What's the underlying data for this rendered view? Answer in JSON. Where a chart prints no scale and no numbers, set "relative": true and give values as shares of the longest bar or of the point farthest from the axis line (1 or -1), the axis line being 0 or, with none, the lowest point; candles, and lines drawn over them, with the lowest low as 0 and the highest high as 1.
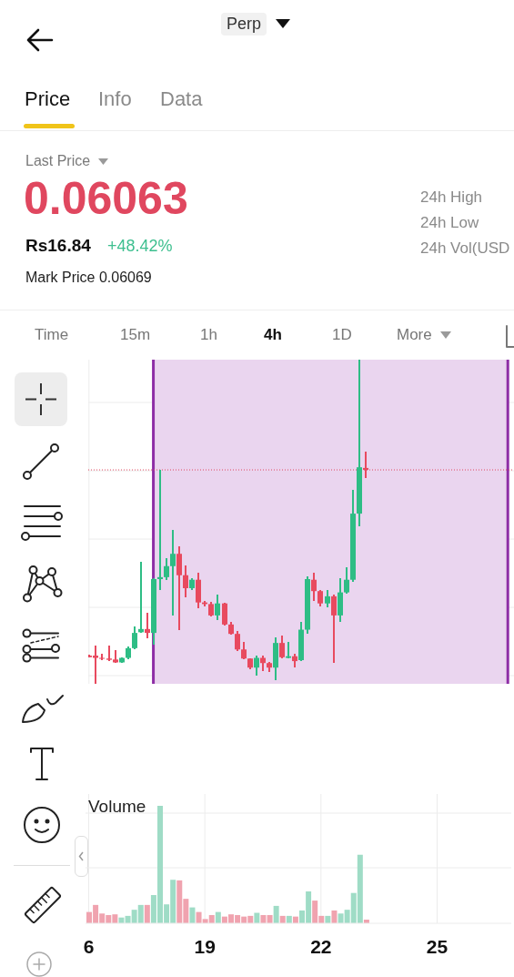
{
  "chart_data": [
    {
      "type": "other",
      "annotations": [
        "Perp",
        "Price",
        "Info",
        "Data",
        "Last Price",
        "0.06063",
        "Rs16.84",
        "+48.42%",
        "Mark Price 0.06069",
        "24h High",
        "24h Low",
        "24h Vol(USD",
        "Time",
        "15m",
        "1h",
        "4h",
        "1D",
        "More"
      ]
    },
    {
      "type": "candlestick",
      "relative": true,
      "x": [
        16,
        16.167,
        16.333,
        16.5,
        16.667,
        16.833,
        17,
        17.167,
        17.333,
        17.5,
        17.667,
        17.833,
        18,
        18.167,
        18.333,
        18.5,
        18.667,
        18.833,
        19,
        19.167,
        19.333,
        19.5,
        19.667,
        19.833,
        20,
        20.167,
        20.333,
        20.5,
        20.667,
        20.833,
        21,
        21.167,
        21.333,
        21.5,
        21.667,
        21.833,
        22,
        22.167,
        22.333,
        22.5,
        22.667,
        22.833,
        23,
        23.167
      ],
      "ohlc": [
        [
          0.087,
          0.089,
          0.081,
          0.082
        ],
        [
          0.087,
          0.117,
          0,
          0.08
        ],
        [
          0.08,
          0.092,
          0.073,
          0.078
        ],
        [
          0.078,
          0.117,
          0.07,
          0.074
        ],
        [
          0.075,
          0.104,
          0.064,
          0.066
        ],
        [
          0.066,
          0.082,
          0.064,
          0.08
        ],
        [
          0.08,
          0.115,
          0.076,
          0.11
        ],
        [
          0.11,
          0.178,
          0.106,
          0.157
        ],
        [
          0.159,
          0.377,
          0.157,
          0.169
        ],
        [
          0.169,
          0.22,
          0.141,
          0.157
        ],
        [
          0.157,
          0.326,
          0.12,
          0.323
        ],
        [
          0.323,
          0.66,
          0.288,
          0.329
        ],
        [
          0.329,
          0.389,
          0.319,
          0.363
        ],
        [
          0.363,
          0.474,
          0.211,
          0.401
        ],
        [
          0.401,
          0.424,
          0.167,
          0.335
        ],
        [
          0.335,
          0.365,
          0.268,
          0.295
        ],
        [
          0.295,
          0.326,
          0.288,
          0.321
        ],
        [
          0.321,
          0.342,
          0.232,
          0.251
        ],
        [
          0.251,
          0.257,
          0.239,
          0.246
        ],
        [
          0.246,
          0.254,
          0.207,
          0.211
        ],
        [
          0.211,
          0.274,
          0.198,
          0.248
        ],
        [
          0.248,
          0.251,
          0.181,
          0.183
        ],
        [
          0.183,
          0.192,
          0.151,
          0.154
        ],
        [
          0.154,
          0.162,
          0.101,
          0.106
        ],
        [
          0.106,
          0.129,
          0.076,
          0.078
        ],
        [
          0.078,
          0.08,
          0.045,
          0.05
        ],
        [
          0.05,
          0.087,
          0.026,
          0.08
        ],
        [
          0.08,
          0.087,
          0.04,
          0.064
        ],
        [
          0.064,
          0.068,
          0.036,
          0.05
        ],
        [
          0.05,
          0.143,
          0.01,
          0.126
        ],
        [
          0.126,
          0.148,
          0.078,
          0.082
        ],
        [
          0.08,
          0.129,
          0.078,
          0.085
        ],
        [
          0.085,
          0.092,
          0.05,
          0.07
        ],
        [
          0.073,
          0.19,
          0.07,
          0.167
        ],
        [
          0.167,
          0.331,
          0.154,
          0.323
        ],
        [
          0.321,
          0.342,
          0.256,
          0.286
        ],
        [
          0.286,
          0.288,
          0.239,
          0.248
        ],
        [
          0.248,
          0.288,
          0.237,
          0.27
        ],
        [
          0.27,
          0.274,
          0.066,
          0.211
        ],
        [
          0.211,
          0.326,
          0.19,
          0.282
        ],
        [
          0.282,
          0.359,
          0.279,
          0.321
        ],
        [
          0.321,
          0.597,
          0.316,
          0.525
        ],
        [
          0.525,
          1,
          0.485,
          0.668
        ],
        [
          0.666,
          0.716,
          0.635,
          0.66
        ]
      ],
      "colors": [
        "#e84a5f",
        "#e84a5f",
        "#e84a5f",
        "#e84a5f",
        "#e84a5f",
        "#2ebd85",
        "#2ebd85",
        "#2ebd85",
        "#2ebd85",
        "#e84a5f",
        "#2ebd85",
        "#2ebd85",
        "#2ebd85",
        "#2ebd85",
        "#e84a5f",
        "#e84a5f",
        "#2ebd85",
        "#e84a5f",
        "#e84a5f",
        "#e84a5f",
        "#2ebd85",
        "#e84a5f",
        "#e84a5f",
        "#e84a5f",
        "#e84a5f",
        "#e84a5f",
        "#2ebd85",
        "#e84a5f",
        "#e84a5f",
        "#2ebd85",
        "#e84a5f",
        "#2ebd85",
        "#e84a5f",
        "#2ebd85",
        "#2ebd85",
        "#e84a5f",
        "#e84a5f",
        "#2ebd85",
        "#e84a5f",
        "#2ebd85",
        "#2ebd85",
        "#2ebd85",
        "#2ebd85",
        "#e84a5f"
      ],
      "xlim": [
        15.98,
        27.03
      ],
      "xticks": [
        16,
        19,
        22,
        25
      ],
      "tick_labels": false,
      "grid": true,
      "bands": [
        {
          "axis": "x",
          "from": 17.67,
          "to": 26.87,
          "color": "#ead5ef"
        }
      ],
      "ref_lines": [
        {
          "axis": "x",
          "value": 17.67,
          "color": "#8e2ea6",
          "line_style": "solid"
        },
        {
          "axis": "x",
          "value": 26.87,
          "color": "#8e2ea6",
          "line_style": "solid"
        },
        {
          "axis": "y",
          "value": 0.66,
          "color": "#e0475f",
          "line_style": "dotted"
        }
      ]
    },
    {
      "type": "bar",
      "title": "Volume",
      "relative": true,
      "categories": [
        "6",
        null,
        null,
        null,
        null,
        null,
        null,
        null,
        null,
        null,
        null,
        null,
        null,
        null,
        null,
        null,
        null,
        null,
        "19",
        null,
        null,
        null,
        null,
        null,
        null,
        null,
        null,
        null,
        null,
        null,
        null,
        null,
        null,
        null,
        null,
        null,
        "22",
        null,
        null,
        null,
        null,
        null,
        null,
        null,
        null,
        null,
        null,
        null,
        null,
        null,
        null,
        null,
        null,
        null,
        "25",
        null,
        null,
        null,
        null,
        null,
        null,
        null,
        null,
        null,
        null,
        null
      ],
      "values": [
        0.096,
        0.156,
        0.083,
        0.07,
        0.076,
        0.049,
        0.063,
        0.115,
        0.156,
        0.156,
        0.24,
        1,
        0.161,
        0.37,
        0.365,
        0.208,
        0.135,
        0.096,
        0.036,
        0.07,
        0.096,
        0.057,
        0.076,
        0.07,
        0.057,
        0.063,
        0.089,
        0.07,
        0.07,
        0.148,
        0.063,
        0.063,
        0.057,
        0.109,
        0.271,
        0.193,
        0.063,
        0.063,
        0.109,
        0.083,
        0.115,
        0.258,
        0.583,
        0.031,
        null,
        null,
        null,
        null,
        null,
        null,
        null,
        null,
        null,
        null,
        null,
        null,
        null,
        null,
        null,
        null,
        null,
        null,
        null,
        null,
        null,
        null
      ],
      "colors": [
        "#f0a3af",
        "#f0a3af",
        "#f0a3af",
        "#f0a3af",
        "#f0a3af",
        "#9fdcc6",
        "#9fdcc6",
        "#9fdcc6",
        "#9fdcc6",
        "#f0a3af",
        "#9fdcc6",
        "#9fdcc6",
        "#9fdcc6",
        "#9fdcc6",
        "#f0a3af",
        "#f0a3af",
        "#9fdcc6",
        "#f0a3af",
        "#f0a3af",
        "#f0a3af",
        "#9fdcc6",
        "#f0a3af",
        "#f0a3af",
        "#f0a3af",
        "#f0a3af",
        "#f0a3af",
        "#9fdcc6",
        "#f0a3af",
        "#f0a3af",
        "#9fdcc6",
        "#f0a3af",
        "#9fdcc6",
        "#f0a3af",
        "#9fdcc6",
        "#9fdcc6",
        "#f0a3af",
        "#f0a3af",
        "#9fdcc6",
        "#f0a3af",
        "#9fdcc6",
        "#9fdcc6",
        "#9fdcc6",
        "#9fdcc6",
        "#f0a3af",
        null,
        null,
        null,
        null,
        null,
        null,
        null,
        null,
        null,
        null,
        null,
        null,
        null,
        null,
        null,
        null,
        null,
        null,
        null,
        null,
        null,
        null
      ],
      "tick_labels": "x",
      "grid": true
    }
  ]
}
